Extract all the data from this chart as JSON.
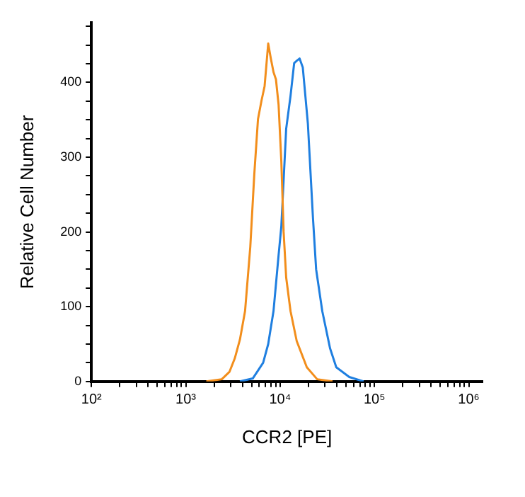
{
  "chart_data": {
    "type": "line",
    "xlabel": "CCR2 [PE]",
    "ylabel": "Relative Cell Number",
    "log": "x",
    "legend": false,
    "marker": "none",
    "line_style": "solid",
    "xlim": [
      100,
      1400000
    ],
    "xticks": [
      {
        "value": 100,
        "label": "10²"
      },
      {
        "value": 200,
        "label": null
      },
      {
        "value": 300,
        "label": null
      },
      {
        "value": 400,
        "label": null
      },
      {
        "value": 500,
        "label": null
      },
      {
        "value": 600,
        "label": null
      },
      {
        "value": 700,
        "label": null
      },
      {
        "value": 800,
        "label": null
      },
      {
        "value": 900,
        "label": null
      },
      {
        "value": 1000,
        "label": "10³"
      },
      {
        "value": 2000,
        "label": null
      },
      {
        "value": 3000,
        "label": null
      },
      {
        "value": 4000,
        "label": null
      },
      {
        "value": 5000,
        "label": null
      },
      {
        "value": 6000,
        "label": null
      },
      {
        "value": 7000,
        "label": null
      },
      {
        "value": 8000,
        "label": null
      },
      {
        "value": 9000,
        "label": null
      },
      {
        "value": 10000,
        "label": "10⁴"
      },
      {
        "value": 20000,
        "label": null
      },
      {
        "value": 30000,
        "label": null
      },
      {
        "value": 40000,
        "label": null
      },
      {
        "value": 50000,
        "label": null
      },
      {
        "value": 60000,
        "label": null
      },
      {
        "value": 70000,
        "label": null
      },
      {
        "value": 80000,
        "label": null
      },
      {
        "value": 90000,
        "label": null
      },
      {
        "value": 100000,
        "label": "10⁵"
      },
      {
        "value": 200000,
        "label": null
      },
      {
        "value": 300000,
        "label": null
      },
      {
        "value": 400000,
        "label": null
      },
      {
        "value": 500000,
        "label": null
      },
      {
        "value": 600000,
        "label": null
      },
      {
        "value": 700000,
        "label": null
      },
      {
        "value": 800000,
        "label": null
      },
      {
        "value": 900000,
        "label": null
      },
      {
        "value": 1000000,
        "label": "10⁶"
      }
    ],
    "ylim": [
      0,
      480
    ],
    "yticks": [
      0,
      {
        "value": 25,
        "label": null
      },
      {
        "value": 50,
        "label": null
      },
      {
        "value": 75,
        "label": null
      },
      100,
      {
        "value": 125,
        "label": null
      },
      {
        "value": 150,
        "label": null
      },
      {
        "value": 175,
        "label": null
      },
      200,
      {
        "value": 225,
        "label": null
      },
      {
        "value": 250,
        "label": null
      },
      {
        "value": 275,
        "label": null
      },
      300,
      {
        "value": 325,
        "label": null
      },
      {
        "value": 350,
        "label": null
      },
      {
        "value": 375,
        "label": null
      },
      400,
      {
        "value": 425,
        "label": null
      },
      {
        "value": 450,
        "label": null
      },
      {
        "value": 475,
        "label": null
      }
    ],
    "series": [
      {
        "color": "#f28e1c",
        "x": [
          1650,
          2410,
          2910,
          3310,
          3750,
          4250,
          4830,
          5320,
          5830,
          6360,
          6850,
          7480,
          7980,
          8510,
          9040,
          9640,
          10300,
          10900,
          11600,
          12900,
          15000,
          19200,
          24700,
          36000
        ],
        "values": [
          0,
          3,
          13,
          31,
          56,
          94,
          180,
          276,
          351,
          376,
          395,
          452,
          432,
          414,
          404,
          370,
          295,
          200,
          139,
          94,
          54,
          19,
          3,
          0
        ]
      },
      {
        "color": "#1f7fe0",
        "x": [
          3750,
          5130,
          6610,
          7480,
          8510,
          9640,
          10300,
          11600,
          12900,
          14100,
          15000,
          16100,
          17400,
          19700,
          22300,
          24100,
          28000,
          33900,
          39400,
          54100,
          76800
        ],
        "values": [
          0,
          4,
          25,
          50,
          94,
          169,
          207,
          338,
          382,
          426,
          429,
          432,
          420,
          345,
          219,
          150,
          94,
          44,
          19,
          6,
          0
        ]
      }
    ]
  }
}
